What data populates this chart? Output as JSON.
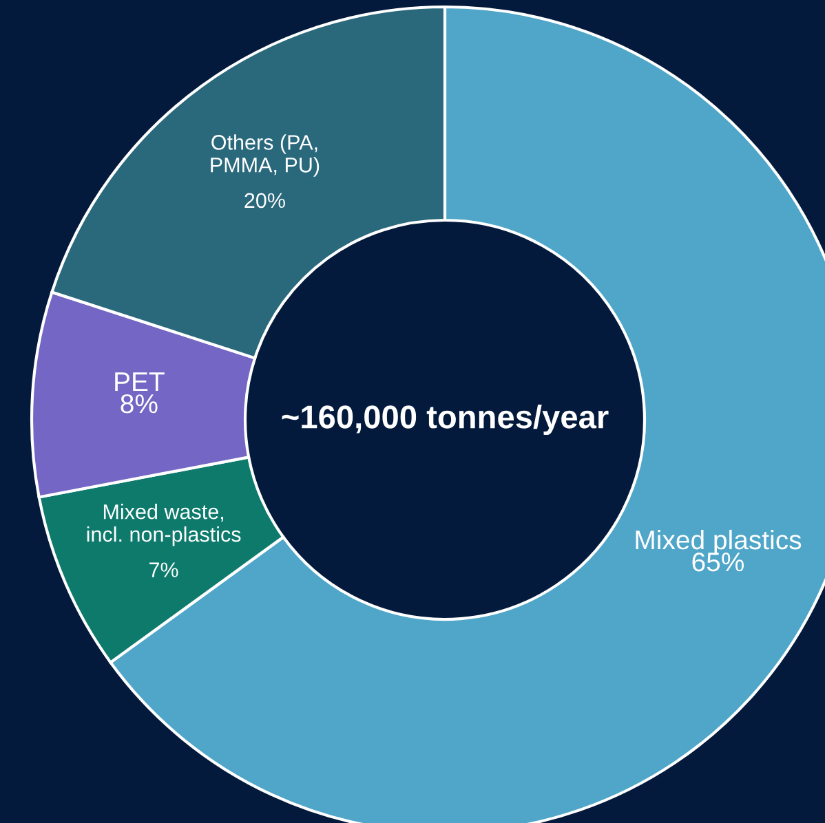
{
  "chart_data": {
    "type": "donut",
    "categories": [
      "Mixed plastics",
      "Mixed waste,\nincl. non-plastics",
      "PET",
      "Others (PA,\nPMMA, PU)"
    ],
    "values": [
      65,
      7,
      8,
      20
    ],
    "value_labels": [
      "65%",
      "7%",
      "8%",
      "20%"
    ],
    "colors": [
      "#4fa6c8",
      "#0d7a6c",
      "#7466c4",
      "#2a687c"
    ],
    "annotations": [
      "~160,000 tonnes/year"
    ],
    "legend": false
  }
}
